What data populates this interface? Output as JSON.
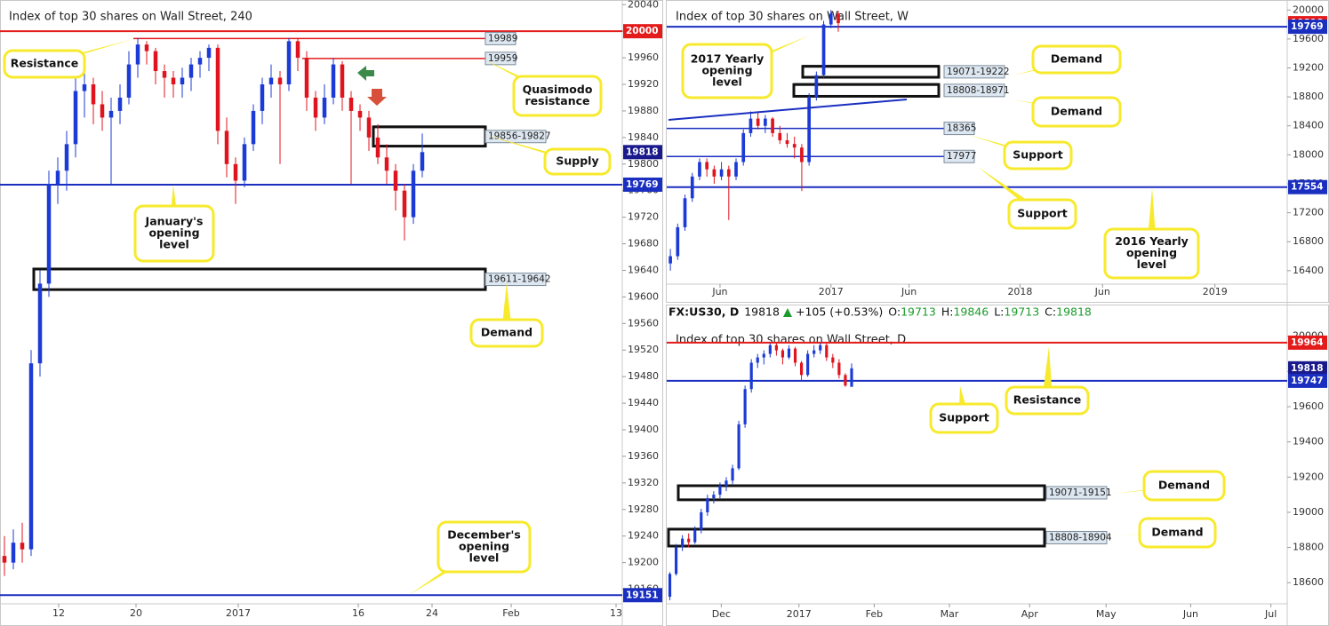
{
  "chart_data": [
    {
      "type": "candlestick",
      "title": "Index of top 30 shares on Wall Street, 240",
      "up_color": "#1c3bd6",
      "down_color": "#e0141e",
      "xlim": [
        -0.5,
        69.5
      ],
      "ylim": [
        19138,
        20047
      ],
      "xticks": [
        {
          "value": 6.1,
          "label": "12"
        },
        {
          "value": 14.8,
          "label": "20"
        },
        {
          "value": 26.3,
          "label": "2017"
        },
        {
          "value": 39.8,
          "label": "16"
        },
        {
          "value": 48.1,
          "label": "24"
        },
        {
          "value": 57,
          "label": "Feb"
        },
        {
          "value": 68.8,
          "label": "13"
        }
      ],
      "yticks": [
        19160,
        19200,
        19240,
        19280,
        19320,
        19360,
        19400,
        19440,
        19480,
        19520,
        19560,
        19600,
        19640,
        19680,
        19720,
        19760,
        19800,
        19840,
        19880,
        19920,
        19960,
        20000,
        20040
      ],
      "candles": [
        [
          19210,
          19240,
          19180,
          19200
        ],
        [
          19200,
          19250,
          19190,
          19230
        ],
        [
          19230,
          19260,
          19200,
          19220
        ],
        [
          19220,
          19520,
          19210,
          19500
        ],
        [
          19500,
          19640,
          19480,
          19620
        ],
        [
          19620,
          19790,
          19600,
          19770
        ],
        [
          19770,
          19810,
          19740,
          19790
        ],
        [
          19790,
          19850,
          19760,
          19830
        ],
        [
          19830,
          19930,
          19810,
          19910
        ],
        [
          19910,
          19940,
          19870,
          19920
        ],
        [
          19920,
          19930,
          19860,
          19890
        ],
        [
          19890,
          19910,
          19850,
          19870
        ],
        [
          19870,
          19900,
          19770,
          19880
        ],
        [
          19880,
          19920,
          19860,
          19900
        ],
        [
          19900,
          19970,
          19890,
          19950
        ],
        [
          19950,
          19990,
          19930,
          19980
        ],
        [
          19980,
          19985,
          19950,
          19970
        ],
        [
          19970,
          19975,
          19920,
          19940
        ],
        [
          19940,
          19950,
          19900,
          19930
        ],
        [
          19930,
          19940,
          19900,
          19920
        ],
        [
          19920,
          19945,
          19900,
          19930
        ],
        [
          19930,
          19960,
          19910,
          19950
        ],
        [
          19950,
          19970,
          19930,
          19960
        ],
        [
          19960,
          19980,
          19940,
          19975
        ],
        [
          19975,
          19980,
          19830,
          19850
        ],
        [
          19850,
          19870,
          19780,
          19800
        ],
        [
          19800,
          19810,
          19740,
          19775
        ],
        [
          19775,
          19840,
          19765,
          19830
        ],
        [
          19830,
          19890,
          19820,
          19880
        ],
        [
          19880,
          19930,
          19860,
          19920
        ],
        [
          19920,
          19950,
          19900,
          19930
        ],
        [
          19930,
          19940,
          19800,
          19920
        ],
        [
          19920,
          19990,
          19910,
          19985
        ],
        [
          19985,
          19990,
          19940,
          19960
        ],
        [
          19960,
          19970,
          19880,
          19900
        ],
        [
          19900,
          19910,
          19850,
          19870
        ],
        [
          19870,
          19920,
          19860,
          19900
        ],
        [
          19900,
          19960,
          19890,
          19950
        ],
        [
          19950,
          19955,
          19880,
          19900
        ],
        [
          19900,
          19910,
          19770,
          19880
        ],
        [
          19880,
          19890,
          19850,
          19870
        ],
        [
          19870,
          19880,
          19820,
          19840
        ],
        [
          19840,
          19860,
          19800,
          19810
        ],
        [
          19810,
          19830,
          19770,
          19790
        ],
        [
          19790,
          19800,
          19730,
          19760
        ],
        [
          19760,
          19770,
          19685,
          19720
        ],
        [
          19720,
          19800,
          19710,
          19790
        ],
        [
          19790,
          19846,
          19780,
          19818
        ]
      ],
      "levels": [
        {
          "value": 20000,
          "color": "#e31b1b",
          "line": "full",
          "tag": "axis"
        },
        {
          "value": 19989,
          "color": "#e31b1b",
          "line": "segment",
          "tag": "inline"
        },
        {
          "value": 19959,
          "color": "#e31b1b",
          "line": "segment",
          "tag": "inline"
        },
        {
          "value": 19818,
          "color": "#1a1a8c",
          "line": "none",
          "tag": "axis"
        },
        {
          "value": 19769,
          "color": "#1a2fc0",
          "line": "full",
          "tag": "axis"
        },
        {
          "value": 19151,
          "color": "#1a2fc0",
          "line": "full",
          "tag": "axis"
        }
      ],
      "zones": [
        {
          "label": "19856-19827",
          "top": 19856,
          "bottom": 19827
        },
        {
          "label": "19611-19642",
          "top": 19642,
          "bottom": 19611
        }
      ],
      "annotations": [
        {
          "lines": [
            "Resistance"
          ]
        },
        {
          "lines": [
            "Quasimodo",
            "resistance"
          ]
        },
        {
          "lines": [
            "Supply"
          ]
        },
        {
          "lines": [
            "January's",
            "opening",
            "level"
          ]
        },
        {
          "lines": [
            "Demand"
          ]
        },
        {
          "lines": [
            "December's",
            "opening",
            "level"
          ]
        }
      ]
    },
    {
      "type": "candlestick",
      "title": "Index of top 30 shares on Wall Street, W",
      "up_color": "#1c3bd6",
      "down_color": "#e0141e",
      "xlim": [
        -0.5,
        84.5
      ],
      "ylim": [
        16214,
        20138
      ],
      "xticks": [
        {
          "value": 6.8,
          "label": "Jun"
        },
        {
          "value": 22,
          "label": "2017"
        },
        {
          "value": 32.7,
          "label": "Jun"
        },
        {
          "value": 47.9,
          "label": "2018"
        },
        {
          "value": 59.2,
          "label": "Jun"
        },
        {
          "value": 74.6,
          "label": "2019"
        }
      ],
      "yticks": [
        16400,
        16800,
        17200,
        17600,
        18000,
        18400,
        18800,
        19200,
        19600,
        20000
      ],
      "candles": [
        [
          16500,
          16700,
          16400,
          16600
        ],
        [
          16600,
          17050,
          16550,
          17000
        ],
        [
          17000,
          17450,
          16950,
          17400
        ],
        [
          17400,
          17750,
          17350,
          17700
        ],
        [
          17700,
          17950,
          17650,
          17900
        ],
        [
          17900,
          17950,
          17700,
          17800
        ],
        [
          17800,
          17850,
          17600,
          17700
        ],
        [
          17700,
          17900,
          17650,
          17800
        ],
        [
          17800,
          17850,
          17100,
          17700
        ],
        [
          17700,
          17950,
          17650,
          17900
        ],
        [
          17900,
          18350,
          17850,
          18300
        ],
        [
          18300,
          18600,
          18250,
          18500
        ],
        [
          18500,
          18600,
          18350,
          18400
        ],
        [
          18400,
          18550,
          18300,
          18500
        ],
        [
          18500,
          18520,
          18250,
          18300
        ],
        [
          18300,
          18400,
          18150,
          18200
        ],
        [
          18200,
          18300,
          18100,
          18150
        ],
        [
          18150,
          18250,
          17950,
          18100
        ],
        [
          18100,
          18150,
          17500,
          17900
        ],
        [
          17900,
          18850,
          17850,
          18800
        ],
        [
          18800,
          19150,
          18750,
          19100
        ],
        [
          19100,
          19850,
          19050,
          19800
        ],
        [
          19800,
          20000,
          19750,
          19950
        ],
        [
          19950,
          19990,
          19700,
          19818
        ]
      ],
      "levels": [
        {
          "value": 19818,
          "color": "#e31b1b",
          "line": "none",
          "tag": "axis"
        },
        {
          "value": 19769,
          "color": "#1a2fc0",
          "line": "full",
          "tag": "axis"
        },
        {
          "value": 18365,
          "color": "#1a2fc0",
          "line": "segment",
          "tag": "inline"
        },
        {
          "value": 17977,
          "color": "#1a2fc0",
          "line": "segment",
          "tag": "inline"
        },
        {
          "value": 17554,
          "color": "#1a2fc0",
          "line": "full",
          "tag": "axis"
        }
      ],
      "zones": [
        {
          "label": "19071-19222",
          "top": 19222,
          "bottom": 19071
        },
        {
          "label": "18808-18971",
          "top": 18971,
          "bottom": 18808
        }
      ],
      "annotations": [
        {
          "lines": [
            "2017 Yearly",
            "opening",
            "level"
          ]
        },
        {
          "lines": [
            "Demand"
          ]
        },
        {
          "lines": [
            "Demand"
          ]
        },
        {
          "lines": [
            "Support"
          ]
        },
        {
          "lines": [
            "Support"
          ]
        },
        {
          "lines": [
            "2016 Yearly",
            "opening",
            "level"
          ]
        }
      ]
    },
    {
      "type": "candlestick",
      "title": "Index of top 30 shares on Wall Street, D",
      "header": {
        "symbol": "FX:US30, D",
        "last": 19818,
        "change": "+105 (+0.53%)",
        "fields": [
          {
            "label": "O:",
            "value": 19713
          },
          {
            "label": "H:",
            "value": 19846
          },
          {
            "label": "L:",
            "value": 19713
          },
          {
            "label": "C:",
            "value": 19818
          }
        ]
      },
      "up_color": "#1c3bd6",
      "down_color": "#e0141e",
      "xlim": [
        -0.5,
        98.5
      ],
      "ylim": [
        18480,
        20034
      ],
      "xticks": [
        {
          "value": 8.2,
          "label": "Dec"
        },
        {
          "value": 20.6,
          "label": "2017"
        },
        {
          "value": 32.6,
          "label": "Feb"
        },
        {
          "value": 44.6,
          "label": "Mar"
        },
        {
          "value": 57.4,
          "label": "Apr"
        },
        {
          "value": 69.6,
          "label": "May"
        },
        {
          "value": 83.1,
          "label": "Jun"
        },
        {
          "value": 95.9,
          "label": "Jul"
        }
      ],
      "yticks": [
        18600,
        18800,
        19000,
        19200,
        19400,
        19600,
        19800,
        20000
      ],
      "candles": [
        [
          18520,
          18660,
          18500,
          18650
        ],
        [
          18650,
          18820,
          18640,
          18800
        ],
        [
          18800,
          18870,
          18780,
          18850
        ],
        [
          18850,
          18880,
          18800,
          18830
        ],
        [
          18830,
          18920,
          18820,
          18900
        ],
        [
          18900,
          19020,
          18880,
          19000
        ],
        [
          19000,
          19100,
          18980,
          19080
        ],
        [
          19080,
          19120,
          19050,
          19100
        ],
        [
          19100,
          19170,
          19080,
          19150
        ],
        [
          19150,
          19200,
          19120,
          19180
        ],
        [
          19180,
          19270,
          19160,
          19250
        ],
        [
          19250,
          19520,
          19240,
          19500
        ],
        [
          19500,
          19720,
          19480,
          19700
        ],
        [
          19700,
          19870,
          19680,
          19850
        ],
        [
          19850,
          19900,
          19820,
          19880
        ],
        [
          19880,
          19920,
          19840,
          19900
        ],
        [
          19900,
          19960,
          19880,
          19950
        ],
        [
          19950,
          19964,
          19890,
          19920
        ],
        [
          19920,
          19930,
          19840,
          19880
        ],
        [
          19880,
          19950,
          19870,
          19930
        ],
        [
          19930,
          19940,
          19830,
          19850
        ],
        [
          19850,
          19860,
          19750,
          19780
        ],
        [
          19780,
          19920,
          19770,
          19900
        ],
        [
          19900,
          19950,
          19880,
          19920
        ],
        [
          19920,
          19964,
          19900,
          19950
        ],
        [
          19950,
          19960,
          19860,
          19880
        ],
        [
          19880,
          19900,
          19820,
          19850
        ],
        [
          19850,
          19870,
          19760,
          19780
        ],
        [
          19780,
          19790,
          19713,
          19720
        ],
        [
          19713,
          19846,
          19713,
          19818
        ]
      ],
      "levels": [
        {
          "value": 19964,
          "color": "#e31b1b",
          "line": "full",
          "tag": "axis"
        },
        {
          "value": 19818,
          "color": "#1a1a8c",
          "line": "none",
          "tag": "axis"
        },
        {
          "value": 19747,
          "color": "#1a2fc0",
          "line": "full",
          "tag": "axis"
        }
      ],
      "zones": [
        {
          "label": "19071-19151",
          "top": 19151,
          "bottom": 19071
        },
        {
          "label": "18808-18904",
          "top": 18904,
          "bottom": 18808
        }
      ],
      "annotations": [
        {
          "lines": [
            "Support"
          ]
        },
        {
          "lines": [
            "Resistance"
          ]
        },
        {
          "lines": [
            "Demand"
          ]
        },
        {
          "lines": [
            "Demand"
          ]
        }
      ]
    }
  ]
}
